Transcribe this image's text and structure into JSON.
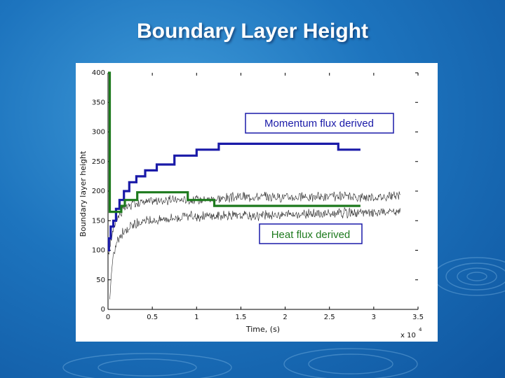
{
  "slide": {
    "title": "Boundary Layer Height"
  },
  "chart_data": {
    "type": "line",
    "title": "",
    "xlabel": "Time, (s)",
    "ylabel": "Boundary layer height",
    "x_multiplier_label": "x 10",
    "x_multiplier_exponent": "4",
    "xlim": [
      0,
      3.5
    ],
    "ylim": [
      0,
      400
    ],
    "x_ticks": [
      0,
      0.5,
      1,
      1.5,
      2,
      2.5,
      3,
      3.5
    ],
    "x_tick_labels": [
      "0",
      "0.5",
      "1",
      "1.5",
      "2",
      "2.5",
      "3",
      "3.5"
    ],
    "y_ticks": [
      0,
      50,
      100,
      150,
      200,
      250,
      300,
      350,
      400
    ],
    "y_tick_labels": [
      "0",
      "50",
      "100",
      "150",
      "200",
      "250",
      "300",
      "350",
      "400"
    ],
    "grid": false,
    "series": [
      {
        "name": "Momentum flux derived",
        "color": "#1a1aa8",
        "style": "step",
        "x": [
          0,
          0.01,
          0.03,
          0.06,
          0.09,
          0.13,
          0.18,
          0.24,
          0.32,
          0.42,
          0.55,
          0.75,
          1.0,
          1.25,
          2.6,
          2.85
        ],
        "y": [
          100,
          120,
          140,
          150,
          170,
          185,
          200,
          215,
          225,
          235,
          245,
          260,
          270,
          280,
          270,
          270
        ]
      },
      {
        "name": "Heat flux derived",
        "color": "#1e7a1e",
        "style": "step",
        "x": [
          0,
          0.02,
          0.15,
          0.19,
          0.33,
          0.9,
          1.2,
          2.85
        ],
        "y": [
          400,
          165,
          175,
          185,
          198,
          185,
          175,
          175
        ]
      },
      {
        "name": "",
        "color": "#000000",
        "style": "noisy",
        "x": [
          0,
          0.05,
          0.1,
          0.2,
          0.3,
          0.5,
          0.75,
          1.0,
          1.5,
          2.0,
          2.5,
          3.0,
          3.3
        ],
        "y": [
          90,
          130,
          155,
          172,
          180,
          183,
          185,
          185,
          190,
          190,
          190,
          190,
          192
        ]
      },
      {
        "name": "",
        "color": "#000000",
        "style": "noisy",
        "x": [
          0.02,
          0.05,
          0.1,
          0.2,
          0.3,
          0.5,
          0.75,
          1.0,
          1.2,
          1.5,
          2.0,
          2.5,
          3.0,
          3.3
        ],
        "y": [
          20,
          80,
          115,
          135,
          145,
          150,
          155,
          158,
          158,
          158,
          160,
          162,
          163,
          165
        ]
      }
    ],
    "annotations": [
      {
        "text": "Momentum flux derived",
        "x": 1.6,
        "y": 308
      },
      {
        "text": "Heat flux derived",
        "x": 1.7,
        "y": 126
      }
    ]
  },
  "colors": {
    "momentum_box_border": "#1a1aa8",
    "momentum_box_text": "#1a1aa8",
    "heat_box_border": "#1a1aa8",
    "heat_box_text": "#1e7a1e"
  }
}
